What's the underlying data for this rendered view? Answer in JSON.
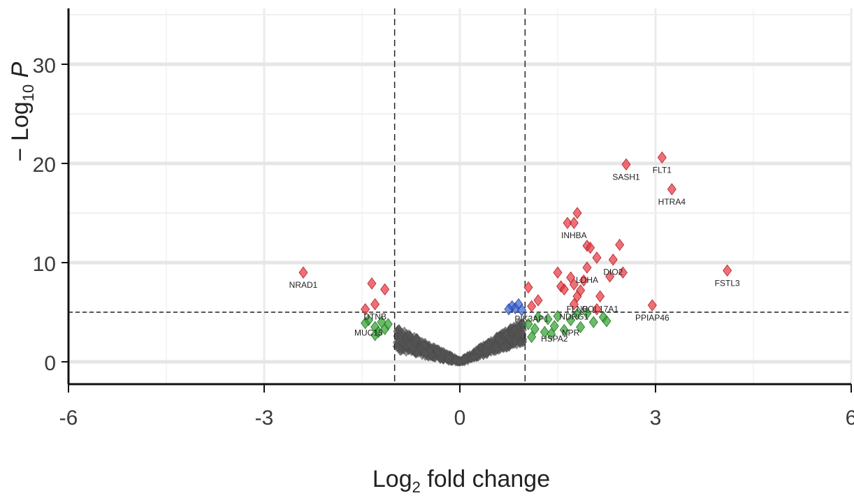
{
  "chart_data": {
    "type": "scatter",
    "title": "",
    "xlabel": {
      "prefix": "Log",
      "sub": "2",
      "suffix": " fold change"
    },
    "ylabel": {
      "prefix": "− Log",
      "sub": "10",
      "suffix": " P"
    },
    "xlim": [
      -6,
      6
    ],
    "ylim": [
      0,
      35
    ],
    "xticks": [
      "-6",
      "-3",
      "0",
      "3",
      "6"
    ],
    "yticks": [
      "0",
      "10",
      "20",
      "30"
    ],
    "grid": true,
    "legend": "none",
    "thresholds": {
      "fold_change": [
        -1,
        1
      ],
      "p_neglog10": 5
    },
    "colors": {
      "not_significant": "#555555",
      "log2fc_only": "#2e9e2e",
      "p_only": "#3a5fd0",
      "p_and_log2fc": "#e8323c"
    },
    "series": [
      {
        "group": "p_and_log2fc",
        "points": [
          {
            "x": -2.4,
            "y": 9.0,
            "label": "NRAD1"
          },
          {
            "x": -1.35,
            "y": 7.9
          },
          {
            "x": -1.15,
            "y": 7.3
          },
          {
            "x": -1.3,
            "y": 5.8,
            "label": "DTNB"
          },
          {
            "x": -1.45,
            "y": 5.3
          },
          {
            "x": 1.05,
            "y": 7.5
          },
          {
            "x": 1.2,
            "y": 6.2
          },
          {
            "x": 1.1,
            "y": 5.6,
            "label": "PIK3AP1"
          },
          {
            "x": 1.5,
            "y": 9.0
          },
          {
            "x": 1.55,
            "y": 7.6
          },
          {
            "x": 1.6,
            "y": 7.3
          },
          {
            "x": 1.7,
            "y": 8.5
          },
          {
            "x": 1.75,
            "y": 7.8
          },
          {
            "x": 1.8,
            "y": 6.6,
            "label": "FLNB"
          },
          {
            "x": 1.75,
            "y": 5.8,
            "label": "NDRG1"
          },
          {
            "x": 1.85,
            "y": 7.2
          },
          {
            "x": 1.9,
            "y": 8.2
          },
          {
            "x": 1.95,
            "y": 9.5,
            "label": "LDHA"
          },
          {
            "x": 1.65,
            "y": 14.0
          },
          {
            "x": 1.75,
            "y": 14.0,
            "label": "INHBA"
          },
          {
            "x": 1.8,
            "y": 15.0
          },
          {
            "x": 1.95,
            "y": 11.7
          },
          {
            "x": 2.0,
            "y": 11.5
          },
          {
            "x": 2.1,
            "y": 10.5
          },
          {
            "x": 2.15,
            "y": 6.6,
            "label": "COL17A1"
          },
          {
            "x": 2.1,
            "y": 5.3
          },
          {
            "x": 2.3,
            "y": 8.6
          },
          {
            "x": 2.35,
            "y": 10.3,
            "label": "DIO2"
          },
          {
            "x": 2.45,
            "y": 11.8
          },
          {
            "x": 2.5,
            "y": 9.0
          },
          {
            "x": 2.55,
            "y": 19.9,
            "label": "SASH1"
          },
          {
            "x": 2.95,
            "y": 5.7,
            "label": "PPIAP46"
          },
          {
            "x": 3.1,
            "y": 20.6,
            "label": "FLT1"
          },
          {
            "x": 3.25,
            "y": 17.4,
            "label": "HTRA4"
          },
          {
            "x": 4.1,
            "y": 9.2,
            "label": "FSTL3"
          }
        ]
      },
      {
        "group": "p_only",
        "points": [
          {
            "x": 0.8,
            "y": 5.6
          },
          {
            "x": 0.85,
            "y": 5.4
          },
          {
            "x": 0.9,
            "y": 5.8
          },
          {
            "x": 0.95,
            "y": 5.2
          },
          {
            "x": 0.75,
            "y": 5.3
          }
        ]
      },
      {
        "group": "log2fc_only",
        "points": [
          {
            "x": -1.4,
            "y": 4.2,
            "label": "MUC15"
          },
          {
            "x": -1.3,
            "y": 3.5
          },
          {
            "x": -1.25,
            "y": 3.0
          },
          {
            "x": -1.2,
            "y": 4.0
          },
          {
            "x": -1.15,
            "y": 3.3
          },
          {
            "x": -1.1,
            "y": 3.8
          },
          {
            "x": -1.3,
            "y": 2.7
          },
          {
            "x": -1.45,
            "y": 3.9
          },
          {
            "x": 1.05,
            "y": 3.8
          },
          {
            "x": 1.1,
            "y": 2.5
          },
          {
            "x": 1.15,
            "y": 3.3
          },
          {
            "x": 1.2,
            "y": 4.5
          },
          {
            "x": 1.3,
            "y": 3.0
          },
          {
            "x": 1.35,
            "y": 4.3
          },
          {
            "x": 1.4,
            "y": 2.8
          },
          {
            "x": 1.45,
            "y": 3.6,
            "label": "HSPA2"
          },
          {
            "x": 1.5,
            "y": 4.6
          },
          {
            "x": 1.6,
            "y": 3.2
          },
          {
            "x": 1.7,
            "y": 4.2,
            "label": "NPR"
          },
          {
            "x": 1.8,
            "y": 4.8
          },
          {
            "x": 1.85,
            "y": 3.5
          },
          {
            "x": 1.95,
            "y": 4.9
          },
          {
            "x": 2.05,
            "y": 4.0
          },
          {
            "x": 2.2,
            "y": 4.5
          },
          {
            "x": 2.25,
            "y": 4.1
          }
        ]
      }
    ],
    "volcano_body": {
      "group": "not_significant",
      "left_tip_x": -0.98,
      "left_tip_y": 3.8,
      "right_tip_x": 0.98,
      "right_tip_y": 5.1,
      "base": [
        0,
        0
      ]
    }
  }
}
